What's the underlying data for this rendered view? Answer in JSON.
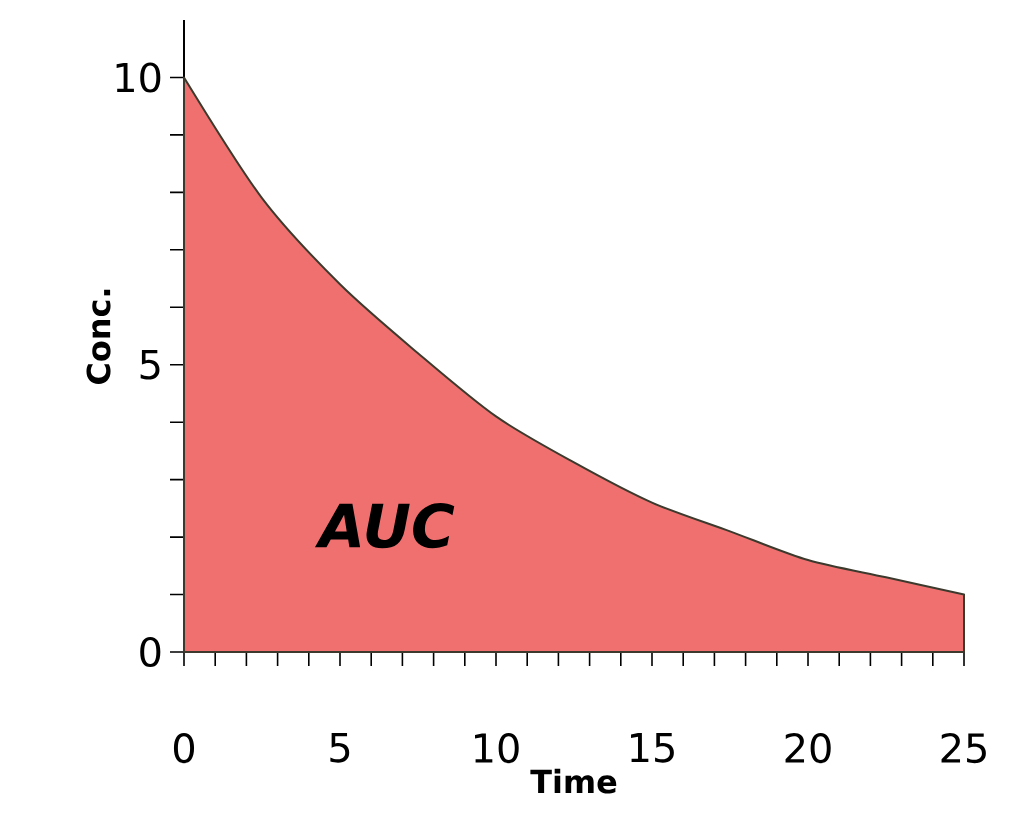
{
  "chart_data": {
    "type": "area",
    "xlabel": "Time",
    "ylabel": "Conc.",
    "x": [
      0,
      2.5,
      5,
      7.5,
      10,
      12.5,
      15,
      17.5,
      20,
      22.5,
      25
    ],
    "series": [
      {
        "color": "#f07070",
        "values": [
          10,
          7.9,
          6.4,
          5.2,
          4.1,
          3.3,
          2.6,
          2.1,
          1.6,
          1.3,
          1.0
        ]
      }
    ],
    "xlim": [
      0,
      25
    ],
    "ylim": [
      0,
      11
    ],
    "xticks": [
      0,
      {
        "value": 1,
        "label": null
      },
      {
        "value": 2,
        "label": null
      },
      {
        "value": 3,
        "label": null
      },
      {
        "value": 4,
        "label": null
      },
      5,
      {
        "value": 6,
        "label": null
      },
      {
        "value": 7,
        "label": null
      },
      {
        "value": 8,
        "label": null
      },
      {
        "value": 9,
        "label": null
      },
      10,
      {
        "value": 11,
        "label": null
      },
      {
        "value": 12,
        "label": null
      },
      {
        "value": 13,
        "label": null
      },
      {
        "value": 14,
        "label": null
      },
      15,
      {
        "value": 16,
        "label": null
      },
      {
        "value": 17,
        "label": null
      },
      {
        "value": 18,
        "label": null
      },
      {
        "value": 19,
        "label": null
      },
      20,
      {
        "value": 21,
        "label": null
      },
      {
        "value": 22,
        "label": null
      },
      {
        "value": 23,
        "label": null
      },
      {
        "value": 24,
        "label": null
      },
      25
    ],
    "yticks": [
      0,
      {
        "value": 1,
        "label": null
      },
      {
        "value": 2,
        "label": null
      },
      {
        "value": 3,
        "label": null
      },
      {
        "value": 4,
        "label": null
      },
      5,
      {
        "value": 6,
        "label": null
      },
      {
        "value": 7,
        "label": null
      },
      {
        "value": 8,
        "label": null
      },
      {
        "value": 9,
        "label": null
      },
      10
    ],
    "annotations": [
      "AUC"
    ]
  }
}
